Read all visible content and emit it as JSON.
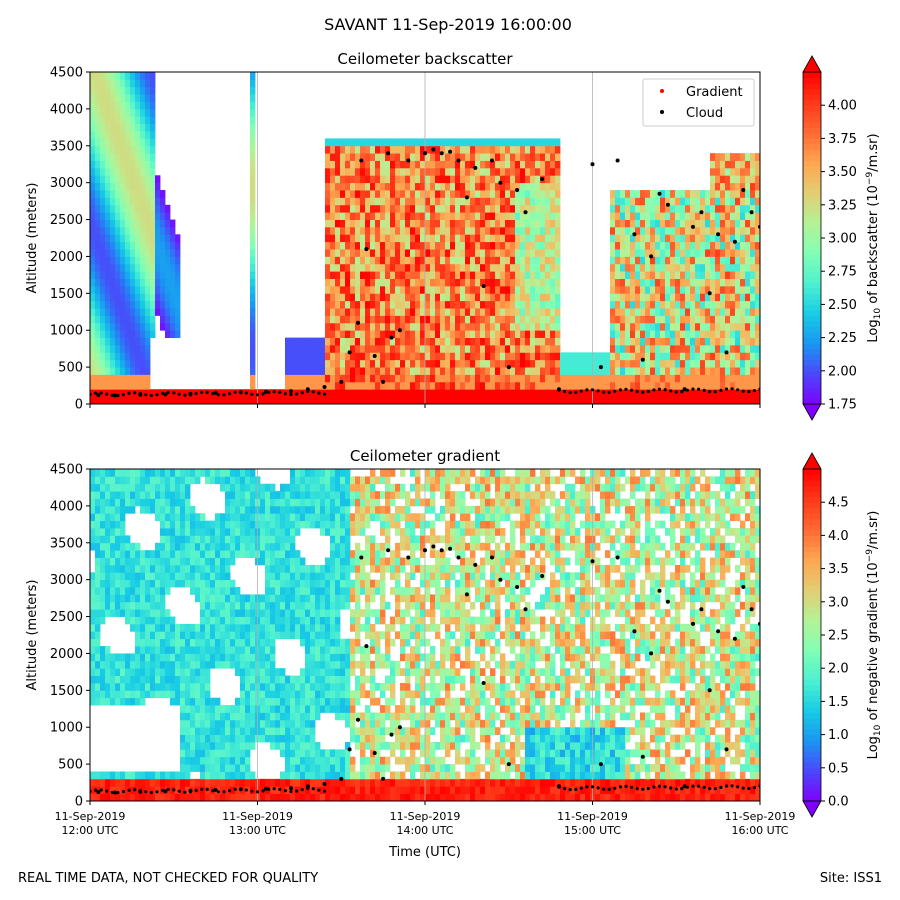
{
  "figure": {
    "suptitle": "SAVANT 11-Sep-2019 16:00:00",
    "footer_left": "REAL TIME DATA, NOT CHECKED FOR QUALITY",
    "footer_right": "Site: ISS1",
    "xlabel": "Time (UTC)"
  },
  "colors": {
    "rainbow": [
      "#7f00ff",
      "#4b47fb",
      "#1a96f2",
      "#18cde4",
      "#4df0d1",
      "#82ffb4",
      "#b4f296",
      "#e3cd73",
      "#ffa651",
      "#ff6a33",
      "#ff3819",
      "#ff0000"
    ],
    "under": "#7f00ff",
    "over": "#ff0000",
    "gradient_marker": "#ff0000",
    "cloud_marker": "#000000",
    "gridline": "#b0b0b0"
  },
  "chart_data": [
    {
      "type": "heatmap",
      "title": "Ceilometer backscatter",
      "ylabel": "Altitude (meters)",
      "ylim": [
        0,
        4500
      ],
      "yticks": [
        "0",
        "500",
        "1000",
        "1500",
        "2000",
        "2500",
        "3000",
        "3500",
        "4000",
        "4500"
      ],
      "xticks": [
        {
          "line1": "11-Sep-2019",
          "line2": "12:00 UTC"
        },
        {
          "line1": "11-Sep-2019",
          "line2": "13:00 UTC"
        },
        {
          "line1": "11-Sep-2019",
          "line2": "14:00 UTC"
        },
        {
          "line1": "11-Sep-2019",
          "line2": "15:00 UTC"
        },
        {
          "line1": "11-Sep-2019",
          "line2": "16:00 UTC"
        }
      ],
      "xtick_hours": [
        12,
        13,
        14,
        15,
        16
      ],
      "xlim_hours": [
        12,
        16
      ],
      "xtick_labels_visible": false,
      "grid": "x-only",
      "colorbar": {
        "label_prefix": "Log",
        "label_sub": "10",
        "label_mid": " of backscatter (10",
        "label_sup": "−9",
        "label_suffix": "/m.sr)",
        "range": [
          1.75,
          4.25
        ],
        "ticks": [
          "1.75",
          "2.00",
          "2.25",
          "2.50",
          "2.75",
          "3.00",
          "3.25",
          "3.50",
          "3.75",
          "4.00"
        ],
        "tick_values": [
          1.75,
          2.0,
          2.25,
          2.5,
          2.75,
          3.0,
          3.25,
          3.5,
          3.75,
          4.0
        ],
        "extend": "both"
      },
      "legend": {
        "position": "top-right",
        "entries": [
          {
            "label": "Gradient",
            "marker": "red-dot"
          },
          {
            "label": "Cloud",
            "marker": "black-dot"
          }
        ]
      },
      "cloud_points": [
        [
          12.05,
          120
        ],
        [
          12.15,
          115
        ],
        [
          12.3,
          125
        ],
        [
          12.45,
          130
        ],
        [
          12.6,
          140
        ],
        [
          12.75,
          150
        ],
        [
          12.9,
          160
        ],
        [
          13.05,
          165
        ],
        [
          13.2,
          175
        ],
        [
          13.3,
          200
        ],
        [
          13.4,
          230
        ],
        [
          13.5,
          300
        ],
        [
          13.55,
          700
        ],
        [
          13.6,
          1100
        ],
        [
          13.62,
          3300
        ],
        [
          13.65,
          2100
        ],
        [
          13.7,
          650
        ],
        [
          13.75,
          300
        ],
        [
          13.78,
          3400
        ],
        [
          13.8,
          900
        ],
        [
          13.85,
          1000
        ],
        [
          13.9,
          3300
        ],
        [
          14.0,
          3400
        ],
        [
          14.05,
          3450
        ],
        [
          14.1,
          3400
        ],
        [
          14.15,
          3420
        ],
        [
          14.2,
          3300
        ],
        [
          14.25,
          2800
        ],
        [
          14.3,
          3200
        ],
        [
          14.35,
          1600
        ],
        [
          14.4,
          3300
        ],
        [
          14.45,
          3000
        ],
        [
          14.5,
          500
        ],
        [
          14.55,
          2900
        ],
        [
          14.6,
          2600
        ],
        [
          14.7,
          3050
        ],
        [
          14.8,
          200
        ],
        [
          15.0,
          3250
        ],
        [
          15.05,
          500
        ],
        [
          15.15,
          3300
        ],
        [
          15.25,
          2300
        ],
        [
          15.3,
          600
        ],
        [
          15.35,
          2000
        ],
        [
          15.4,
          2850
        ],
        [
          15.45,
          2700
        ],
        [
          15.55,
          200
        ],
        [
          15.6,
          2400
        ],
        [
          15.65,
          2600
        ],
        [
          15.7,
          1500
        ],
        [
          15.75,
          2300
        ],
        [
          15.8,
          700
        ],
        [
          15.85,
          2200
        ],
        [
          15.9,
          2900
        ],
        [
          15.95,
          2600
        ],
        [
          16.0,
          2400
        ]
      ],
      "gradient_points": []
    },
    {
      "type": "heatmap",
      "title": "Ceilometer gradient",
      "ylabel": "Altitude (meters)",
      "ylim": [
        0,
        4500
      ],
      "yticks": [
        "0",
        "500",
        "1000",
        "1500",
        "2000",
        "2500",
        "3000",
        "3500",
        "4000",
        "4500"
      ],
      "xticks": [
        {
          "line1": "11-Sep-2019",
          "line2": "12:00 UTC"
        },
        {
          "line1": "11-Sep-2019",
          "line2": "13:00 UTC"
        },
        {
          "line1": "11-Sep-2019",
          "line2": "14:00 UTC"
        },
        {
          "line1": "11-Sep-2019",
          "line2": "15:00 UTC"
        },
        {
          "line1": "11-Sep-2019",
          "line2": "16:00 UTC"
        }
      ],
      "xtick_hours": [
        12,
        13,
        14,
        15,
        16
      ],
      "xlim_hours": [
        12,
        16
      ],
      "xtick_labels_visible": true,
      "grid": "x-only",
      "colorbar": {
        "label_prefix": "Log",
        "label_sub": "10",
        "label_mid": " of negative gradient (10",
        "label_sup": "−9",
        "label_suffix": "/m.sr)",
        "range": [
          0.0,
          5.0
        ],
        "ticks": [
          "0.0",
          "0.5",
          "1.0",
          "1.5",
          "2.0",
          "2.5",
          "3.0",
          "3.5",
          "4.0",
          "4.5"
        ],
        "tick_values": [
          0.0,
          0.5,
          1.0,
          1.5,
          2.0,
          2.5,
          3.0,
          3.5,
          4.0,
          4.5
        ],
        "extend": "both"
      },
      "cloud_points": [
        [
          12.05,
          120
        ],
        [
          12.15,
          115
        ],
        [
          12.3,
          125
        ],
        [
          12.45,
          130
        ],
        [
          12.6,
          140
        ],
        [
          12.75,
          150
        ],
        [
          12.9,
          160
        ],
        [
          13.05,
          165
        ],
        [
          13.2,
          175
        ],
        [
          13.3,
          200
        ],
        [
          13.4,
          230
        ],
        [
          13.5,
          300
        ],
        [
          13.55,
          700
        ],
        [
          13.6,
          1100
        ],
        [
          13.62,
          3300
        ],
        [
          13.65,
          2100
        ],
        [
          13.7,
          650
        ],
        [
          13.75,
          300
        ],
        [
          13.78,
          3400
        ],
        [
          13.8,
          900
        ],
        [
          13.85,
          1000
        ],
        [
          13.9,
          3300
        ],
        [
          14.0,
          3400
        ],
        [
          14.05,
          3450
        ],
        [
          14.1,
          3400
        ],
        [
          14.15,
          3420
        ],
        [
          14.2,
          3300
        ],
        [
          14.25,
          2800
        ],
        [
          14.3,
          3200
        ],
        [
          14.35,
          1600
        ],
        [
          14.4,
          3300
        ],
        [
          14.45,
          3000
        ],
        [
          14.5,
          500
        ],
        [
          14.55,
          2900
        ],
        [
          14.6,
          2600
        ],
        [
          14.7,
          3050
        ],
        [
          14.8,
          200
        ],
        [
          15.0,
          3250
        ],
        [
          15.05,
          500
        ],
        [
          15.15,
          3300
        ],
        [
          15.25,
          2300
        ],
        [
          15.3,
          600
        ],
        [
          15.35,
          2000
        ],
        [
          15.4,
          2850
        ],
        [
          15.45,
          2700
        ],
        [
          15.55,
          200
        ],
        [
          15.6,
          2400
        ],
        [
          15.65,
          2600
        ],
        [
          15.7,
          1500
        ],
        [
          15.75,
          2300
        ],
        [
          15.8,
          700
        ],
        [
          15.85,
          2200
        ],
        [
          15.9,
          2900
        ],
        [
          15.95,
          2600
        ],
        [
          16.0,
          2400
        ]
      ]
    }
  ]
}
